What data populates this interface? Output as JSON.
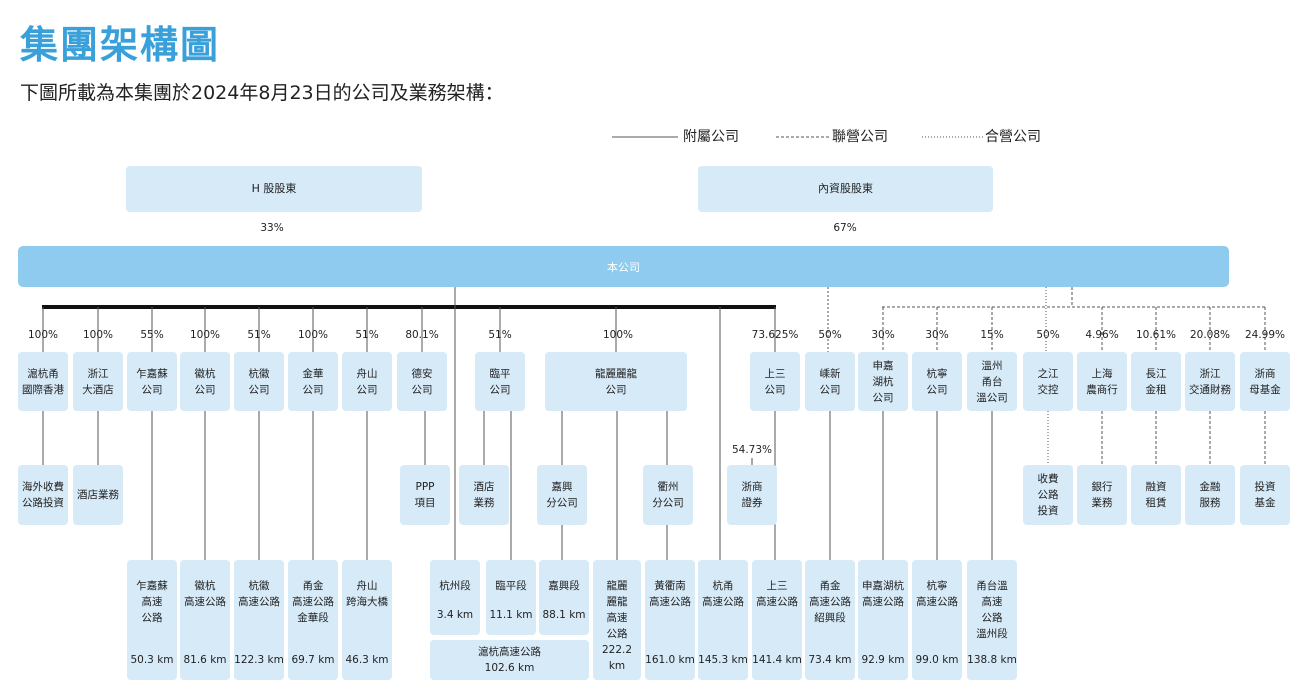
{
  "header": {
    "title": "集團架構圖",
    "subtitle": "下圖所載為本集團於2024年8月23日的公司及業務架構："
  },
  "legend": [
    "附屬公司",
    "聯營公司",
    "合營公司"
  ],
  "shareholders": [
    {
      "label": "H 股股東",
      "share": "33%"
    },
    {
      "label": "內資股股東",
      "share": "67%"
    }
  ],
  "company": "本公司",
  "holdings": [
    {
      "share": "100%",
      "label": [
        "滬杭甬",
        "國際香港"
      ]
    },
    {
      "share": "100%",
      "label": [
        "浙江",
        "大酒店"
      ]
    },
    {
      "share": "55%",
      "label": [
        "乍嘉蘇",
        "公司"
      ]
    },
    {
      "share": "100%",
      "label": [
        "徽杭",
        "公司"
      ]
    },
    {
      "share": "51%",
      "label": [
        "杭徽",
        "公司"
      ]
    },
    {
      "share": "100%",
      "label": [
        "金華",
        "公司"
      ]
    },
    {
      "share": "51%",
      "label": [
        "舟山",
        "公司"
      ]
    },
    {
      "share": "80.1%",
      "label": [
        "德安",
        "公司"
      ]
    },
    {
      "share": "51%",
      "label": [
        "臨平",
        "公司"
      ]
    },
    {
      "share": "100%",
      "label": [
        "龍麗麗龍",
        "公司"
      ]
    },
    {
      "share": "73.625%",
      "label": [
        "上三",
        "公司"
      ]
    },
    {
      "share": "50%",
      "label": [
        "嵊新",
        "公司"
      ]
    },
    {
      "share": "30%",
      "label": [
        "申嘉",
        "湖杭",
        "公司"
      ]
    },
    {
      "share": "30%",
      "label": [
        "杭寧",
        "公司"
      ]
    },
    {
      "share": "15%",
      "label": [
        "溫州",
        "甬台",
        "溫公司"
      ]
    },
    {
      "share": "50%",
      "label": [
        "之江",
        "交控"
      ]
    },
    {
      "share": "4.96%",
      "label": [
        "上海",
        "農商行"
      ]
    },
    {
      "share": "10.61%",
      "label": [
        "長江",
        "金租"
      ]
    },
    {
      "share": "20.08%",
      "label": [
        "浙江",
        "交通財務"
      ]
    },
    {
      "share": "24.99%",
      "label": [
        "浙商",
        "母基金"
      ]
    }
  ],
  "businesses": [
    {
      "label": [
        "海外收費",
        "公路投資"
      ]
    },
    {
      "label": [
        "酒店業務"
      ]
    },
    {
      "label": [
        "PPP",
        "項目"
      ]
    },
    {
      "label": [
        "酒店",
        "業務"
      ]
    },
    {
      "label": [
        "嘉興",
        "分公司"
      ]
    },
    {
      "label": [
        "衢州",
        "分公司"
      ]
    },
    {
      "label": [
        "浙商",
        "證券"
      ],
      "share": "54.73%"
    },
    {
      "label": [
        "收費",
        "公路",
        "投資"
      ]
    },
    {
      "label": [
        "銀行",
        "業務"
      ]
    },
    {
      "label": [
        "融資",
        "租賃"
      ]
    },
    {
      "label": [
        "金融",
        "服務"
      ]
    },
    {
      "label": [
        "投資",
        "基金"
      ]
    }
  ],
  "roads": [
    {
      "label": [
        "乍嘉蘇",
        "高速",
        "公路"
      ],
      "length": "50.3 km"
    },
    {
      "label": [
        "徽杭",
        "高速公路"
      ],
      "length": "81.6 km"
    },
    {
      "label": [
        "杭徽",
        "高速公路"
      ],
      "length": "122.3 km"
    },
    {
      "label": [
        "甬金",
        "高速公路",
        "金華段"
      ],
      "length": "69.7 km"
    },
    {
      "label": [
        "舟山",
        "跨海大橋"
      ],
      "length": "46.3 km"
    },
    {
      "label": [
        "杭州段"
      ],
      "length": "3.4 km"
    },
    {
      "label": [
        "臨平段"
      ],
      "length": "11.1 km"
    },
    {
      "label": [
        "嘉興段"
      ],
      "length": "88.1 km"
    },
    {
      "label": [
        "滬杭高速公路"
      ],
      "length": "102.6 km"
    },
    {
      "label": [
        "龍麗",
        "麗龍",
        "高速",
        "公路"
      ],
      "length": "222.2 km"
    },
    {
      "label": [
        "黃衢南",
        "高速公路"
      ],
      "length": "161.0 km"
    },
    {
      "label": [
        "杭甬",
        "高速公路"
      ],
      "length": "145.3 km"
    },
    {
      "label": [
        "上三",
        "高速公路"
      ],
      "length": "141.4 km"
    },
    {
      "label": [
        "甬金",
        "高速公路",
        "紹興段"
      ],
      "length": "73.4 km"
    },
    {
      "label": [
        "申嘉湖杭",
        "高速公路"
      ],
      "length": "92.9 km"
    },
    {
      "label": [
        "杭寧",
        "高速公路"
      ],
      "length": "99.0 km"
    },
    {
      "label": [
        "甬台溫",
        "高速",
        "公路",
        "溫州段"
      ],
      "length": "138.8 km"
    }
  ]
}
